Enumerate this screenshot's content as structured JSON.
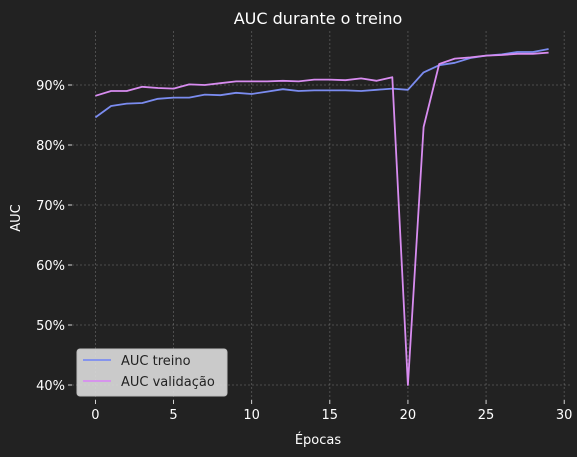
{
  "chart_data": {
    "type": "line",
    "title": "AUC durante o treino",
    "xlabel": "Épocas",
    "ylabel": "AUC",
    "xlim": [
      -1.5,
      30.5
    ],
    "ylim": [
      0.375,
      0.99
    ],
    "xticks": [
      0,
      5,
      10,
      15,
      20,
      25,
      30
    ],
    "xtick_labels": [
      "0",
      "5",
      "10",
      "15",
      "20",
      "25",
      "30"
    ],
    "yticks": [
      0.4,
      0.5,
      0.6,
      0.7,
      0.8,
      0.9
    ],
    "ytick_labels": [
      "40%",
      "50%",
      "60%",
      "70%",
      "80%",
      "90%"
    ],
    "grid": true,
    "legend_position": "lower-left",
    "x": [
      0,
      1,
      2,
      3,
      4,
      5,
      6,
      7,
      8,
      9,
      10,
      11,
      12,
      13,
      14,
      15,
      16,
      17,
      18,
      19,
      20,
      21,
      22,
      23,
      24,
      25,
      26,
      27,
      28,
      29
    ],
    "series": [
      {
        "name": "AUC treino",
        "color": "#7b8cf0",
        "values": [
          0.846,
          0.865,
          0.869,
          0.87,
          0.877,
          0.879,
          0.879,
          0.884,
          0.883,
          0.887,
          0.885,
          0.889,
          0.893,
          0.89,
          0.891,
          0.891,
          0.891,
          0.89,
          0.892,
          0.894,
          0.892,
          0.921,
          0.933,
          0.937,
          0.945,
          0.949,
          0.951,
          0.955,
          0.955,
          0.96
        ]
      },
      {
        "name": "AUC validação",
        "color": "#d88cf0",
        "values": [
          0.882,
          0.89,
          0.89,
          0.897,
          0.895,
          0.894,
          0.901,
          0.9,
          0.903,
          0.906,
          0.906,
          0.906,
          0.907,
          0.906,
          0.909,
          0.909,
          0.908,
          0.911,
          0.907,
          0.913,
          0.4,
          0.83,
          0.935,
          0.944,
          0.946,
          0.949,
          0.95,
          0.952,
          0.952,
          0.954
        ]
      }
    ]
  }
}
